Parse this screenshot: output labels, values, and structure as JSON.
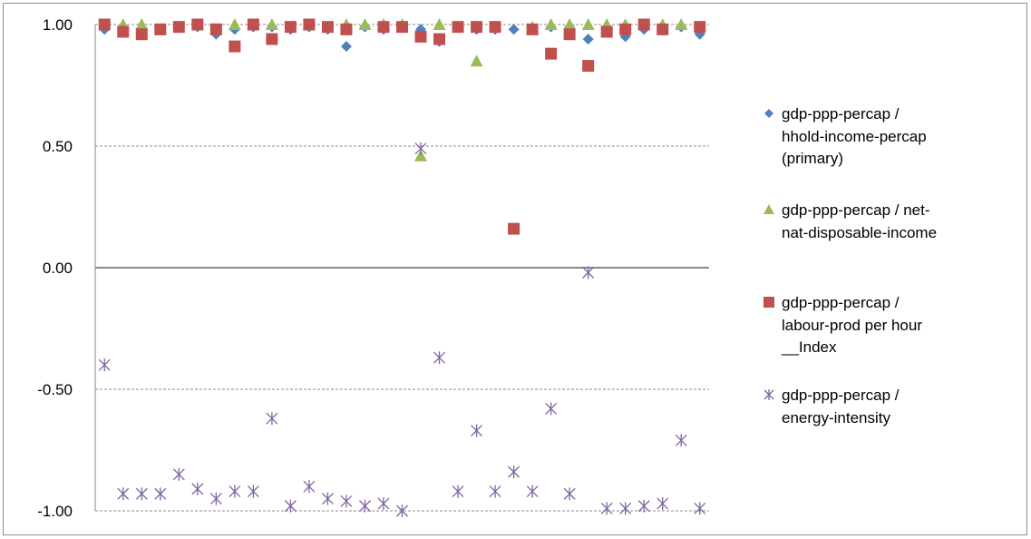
{
  "chart_data": {
    "type": "scatter",
    "title": "",
    "xlabel": "",
    "ylabel": "",
    "ylim": [
      -1.0,
      1.0
    ],
    "yticks": [
      "1.00",
      "0.50",
      "0.00",
      "-0.50",
      "-1.00"
    ],
    "ytick_values": [
      1.0,
      0.5,
      0.0,
      -0.5,
      -1.0
    ],
    "grid": "horizontal dashed",
    "legend_position": "right",
    "x": [
      1,
      2,
      3,
      4,
      5,
      6,
      7,
      8,
      9,
      10,
      11,
      12,
      13,
      14,
      15,
      16,
      17,
      18,
      19,
      20,
      21,
      22,
      23,
      24,
      25,
      26,
      27,
      28,
      29,
      30,
      31,
      32,
      33
    ],
    "series": [
      {
        "name": "gdp-ppp-percap / hhold-income-percap (primary)",
        "marker": "diamond",
        "color": "#4f81bd",
        "values": [
          0.98,
          0.98,
          0.98,
          0.98,
          0.99,
          0.99,
          0.96,
          0.98,
          0.99,
          0.99,
          0.98,
          0.99,
          0.98,
          0.91,
          0.99,
          0.98,
          0.99,
          0.98,
          0.93,
          0.99,
          0.98,
          0.98,
          0.98,
          0.98,
          0.99,
          0.99,
          0.94,
          0.99,
          0.95,
          0.98,
          0.99,
          0.99,
          0.96
        ]
      },
      {
        "name": "gdp-ppp-percap / net-nat-disposable-income",
        "marker": "triangle",
        "color": "#9bbb59",
        "values": [
          null,
          1.0,
          1.0,
          0.98,
          null,
          null,
          null,
          1.0,
          1.0,
          1.0,
          null,
          1.0,
          null,
          1.0,
          1.0,
          1.0,
          1.0,
          0.46,
          1.0,
          null,
          0.85,
          null,
          null,
          0.99,
          1.0,
          1.0,
          1.0,
          1.0,
          1.0,
          1.0,
          1.0,
          1.0,
          null
        ]
      },
      {
        "name": "gdp-ppp-percap / labour-prod per hour __Index",
        "marker": "square",
        "color": "#c0504d",
        "values": [
          1.0,
          0.97,
          0.96,
          0.98,
          0.99,
          1.0,
          0.98,
          0.91,
          1.0,
          0.94,
          0.99,
          1.0,
          0.99,
          0.98,
          null,
          0.99,
          0.99,
          0.95,
          0.94,
          0.99,
          0.99,
          0.99,
          0.16,
          0.98,
          0.88,
          0.96,
          0.83,
          0.97,
          0.98,
          1.0,
          0.98,
          null,
          0.99
        ]
      },
      {
        "name": "gdp-ppp-percap / energy-intensity",
        "marker": "star",
        "color": "#8064a2",
        "values": [
          -0.4,
          -0.93,
          -0.93,
          -0.93,
          -0.85,
          -0.91,
          -0.95,
          -0.92,
          -0.92,
          -0.62,
          -0.98,
          -0.9,
          -0.95,
          -0.96,
          -0.98,
          -0.97,
          -1.0,
          0.49,
          -0.37,
          -0.92,
          -0.67,
          -0.92,
          -0.84,
          -0.92,
          -0.58,
          -0.93,
          -0.02,
          -0.99,
          -0.99,
          -0.98,
          -0.97,
          -0.71,
          -0.99
        ]
      }
    ]
  },
  "legend": {
    "items": [
      {
        "lines": [
          "gdp-ppp-percap /",
          "hhold-income-percap",
          "(primary)"
        ],
        "marker": "diamond",
        "color": "#4f81bd"
      },
      {
        "lines": [
          "gdp-ppp-percap / net-",
          "nat-disposable-income"
        ],
        "marker": "triangle",
        "color": "#9bbb59"
      },
      {
        "lines": [
          "gdp-ppp-percap /",
          "labour-prod per hour",
          "__Index"
        ],
        "marker": "square",
        "color": "#c0504d"
      },
      {
        "lines": [
          "gdp-ppp-percap /",
          "energy-intensity"
        ],
        "marker": "star",
        "color": "#8064a2"
      }
    ]
  }
}
